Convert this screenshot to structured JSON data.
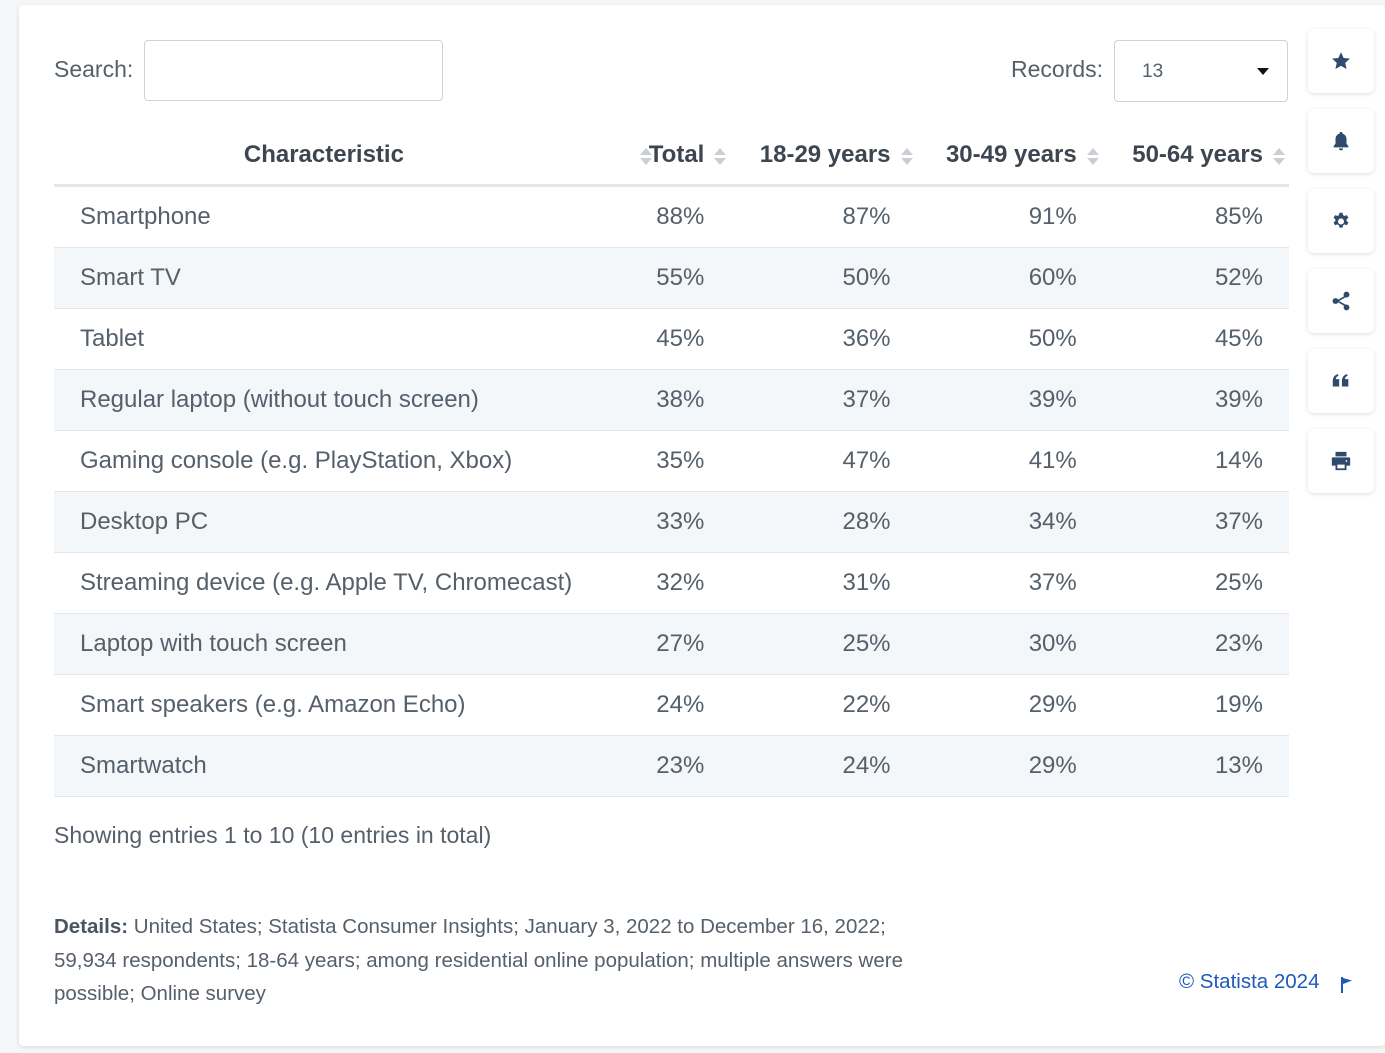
{
  "search": {
    "label": "Search:",
    "value": "",
    "placeholder": ""
  },
  "records": {
    "label": "Records:",
    "value": "13"
  },
  "table": {
    "headers": [
      "Characteristic",
      "Total",
      "18-29 years",
      "30-49 years",
      "50-64 years"
    ],
    "rows": [
      [
        "Smartphone",
        "88%",
        "87%",
        "91%",
        "85%"
      ],
      [
        "Smart TV",
        "55%",
        "50%",
        "60%",
        "52%"
      ],
      [
        "Tablet",
        "45%",
        "36%",
        "50%",
        "45%"
      ],
      [
        "Regular laptop (without touch screen)",
        "38%",
        "37%",
        "39%",
        "39%"
      ],
      [
        "Gaming console (e.g. PlayStation, Xbox)",
        "35%",
        "47%",
        "41%",
        "14%"
      ],
      [
        "Desktop PC",
        "33%",
        "28%",
        "34%",
        "37%"
      ],
      [
        "Streaming device (e.g. Apple TV, Chromecast)",
        "32%",
        "31%",
        "37%",
        "25%"
      ],
      [
        "Laptop with touch screen",
        "27%",
        "25%",
        "30%",
        "23%"
      ],
      [
        "Smart speakers (e.g. Amazon Echo)",
        "24%",
        "22%",
        "29%",
        "19%"
      ],
      [
        "Smartwatch",
        "23%",
        "24%",
        "29%",
        "13%"
      ]
    ]
  },
  "footer": {
    "entries": "Showing entries 1 to 10 (10 entries in total)",
    "details_label": "Details:",
    "details_text": " United States; Statista Consumer Insights; January 3, 2022 to December 16, 2022; 59,934 respondents; 18-64 years; among residential online population; multiple answers were possible; Online survey",
    "copyright": "© Statista 2024"
  },
  "sidebar": {
    "buttons": [
      "star-icon",
      "bell-icon",
      "gear-icon",
      "share-icon",
      "quote-icon",
      "print-icon"
    ]
  },
  "colors": {
    "link": "#1e5ab8",
    "icon": "#2f4a6b",
    "row_alt": "#f4f7fa"
  }
}
